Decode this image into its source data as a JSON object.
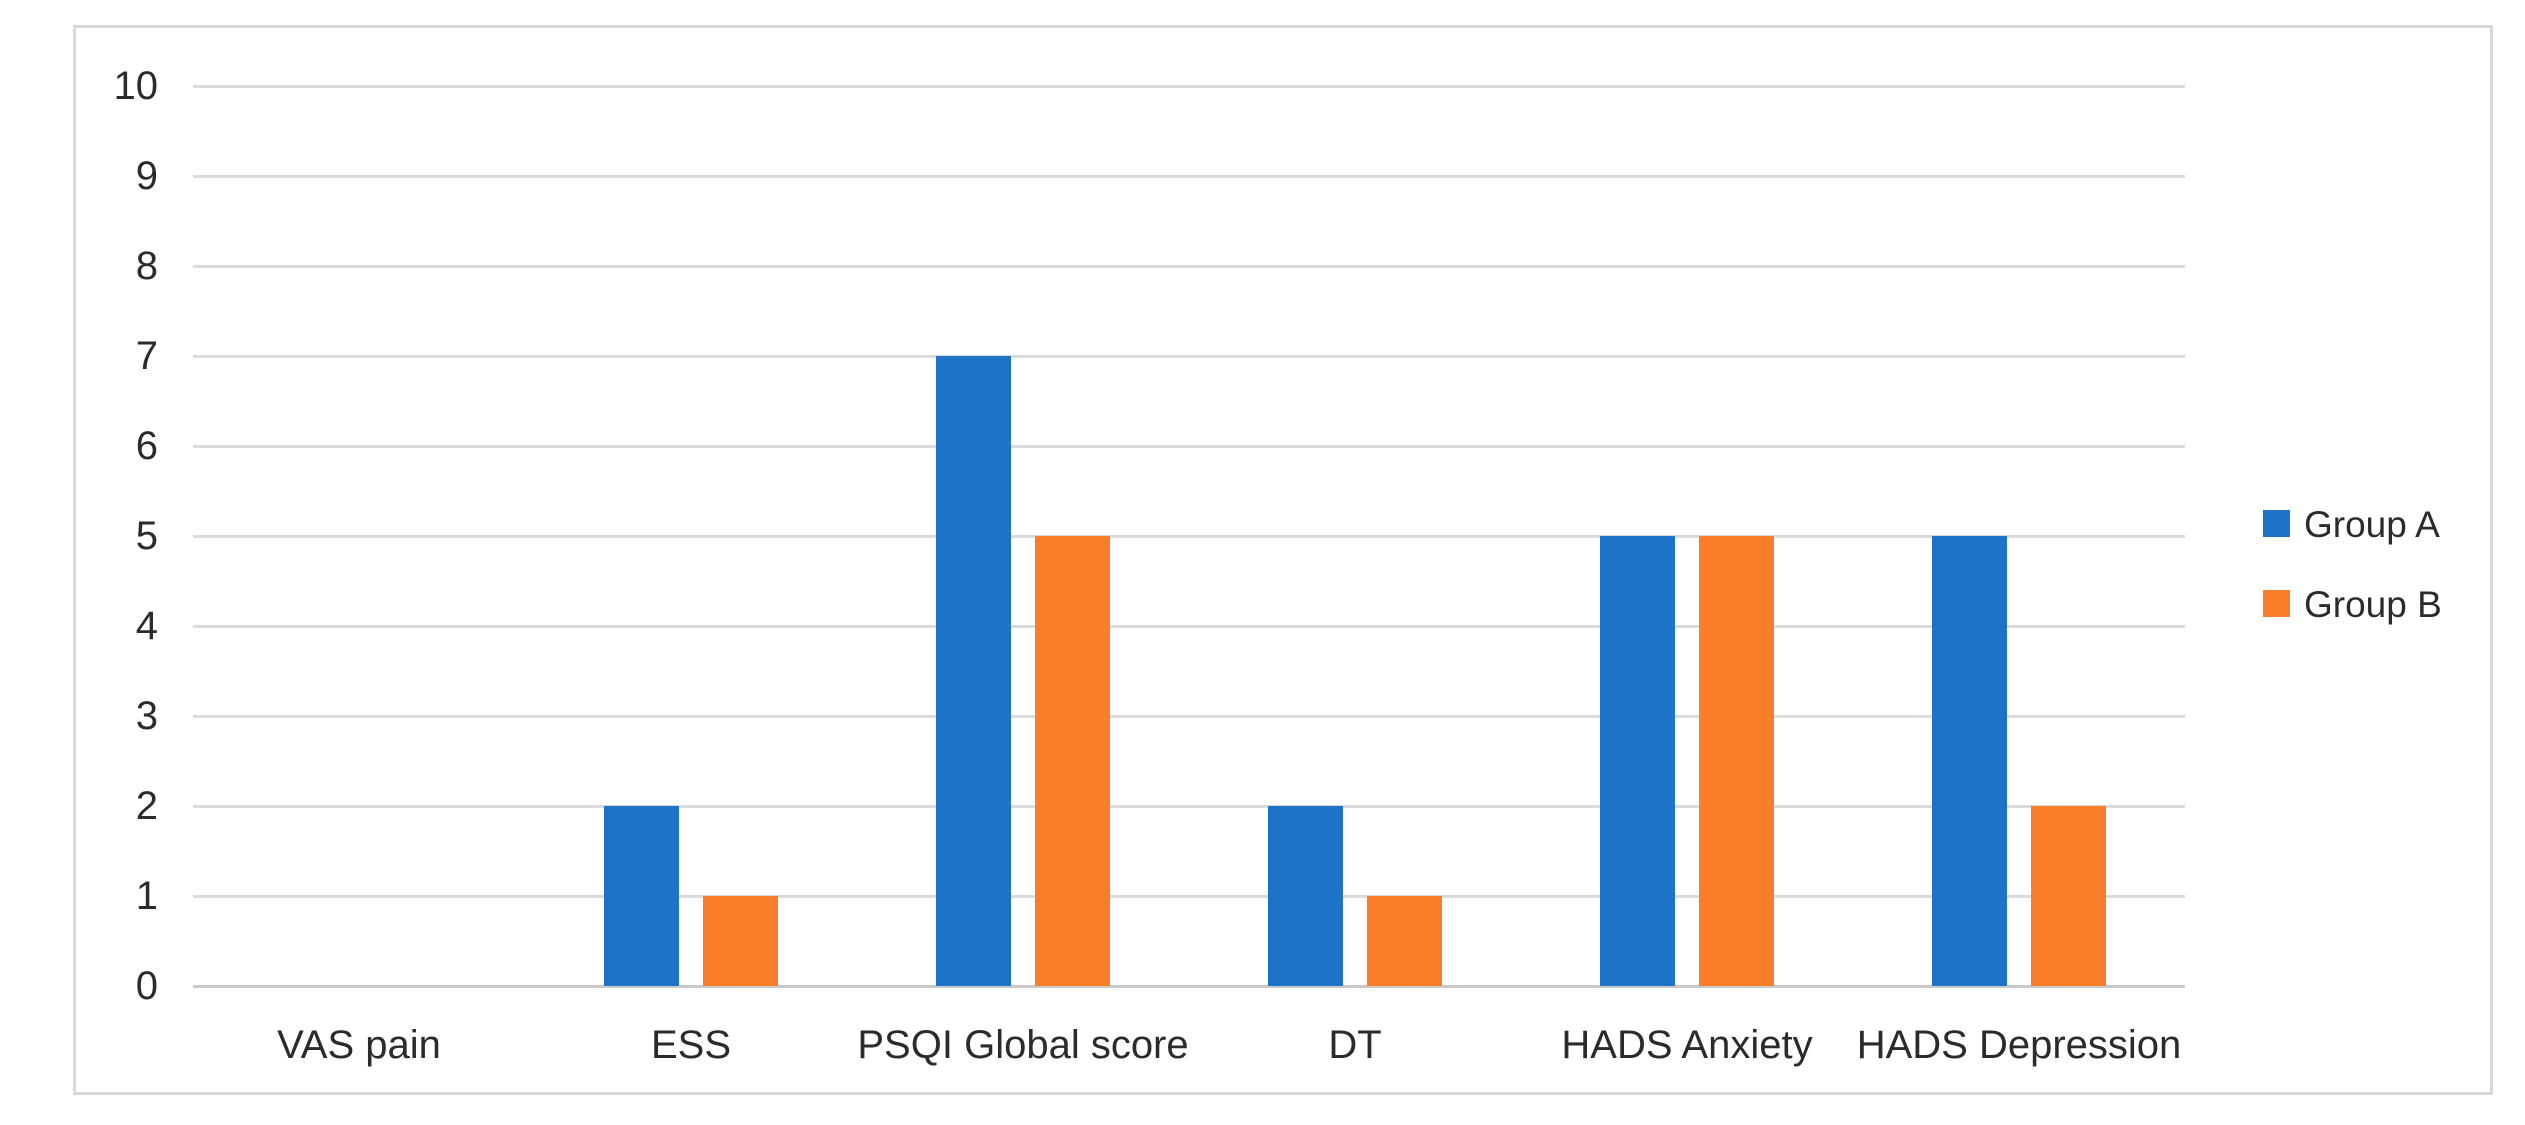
{
  "chart_data": {
    "type": "bar",
    "categories": [
      "VAS pain",
      "ESS",
      "PSQI Global score",
      "DT",
      "HADS Anxiety",
      "HADS Depression"
    ],
    "series": [
      {
        "name": "Group A",
        "color": "#1C73C8",
        "values": [
          0,
          2,
          7,
          2,
          5,
          5
        ]
      },
      {
        "name": "Group B",
        "color": "#FA7D29",
        "values": [
          0,
          1,
          5,
          1,
          5,
          2
        ]
      }
    ],
    "title": "",
    "xlabel": "",
    "ylabel": "",
    "ylim": [
      0,
      10
    ],
    "ytick_step": 1,
    "yticks": [
      0,
      1,
      2,
      3,
      4,
      5,
      6,
      7,
      8,
      9,
      10
    ],
    "grid": true,
    "legend_position": "right-middle"
  },
  "legend": {
    "items": [
      {
        "label": "Group A",
        "color": "#1C73C8"
      },
      {
        "label": "Group B",
        "color": "#FA7D29"
      }
    ]
  },
  "colors": {
    "group_a": "#1C73C8",
    "group_b": "#FA7D29",
    "gridline": "#DBDBDB",
    "axis_baseline": "#C9C9C9",
    "frame_border": "#D9D9D9",
    "text": "#2B2B2B",
    "background": "#FFFFFF"
  }
}
